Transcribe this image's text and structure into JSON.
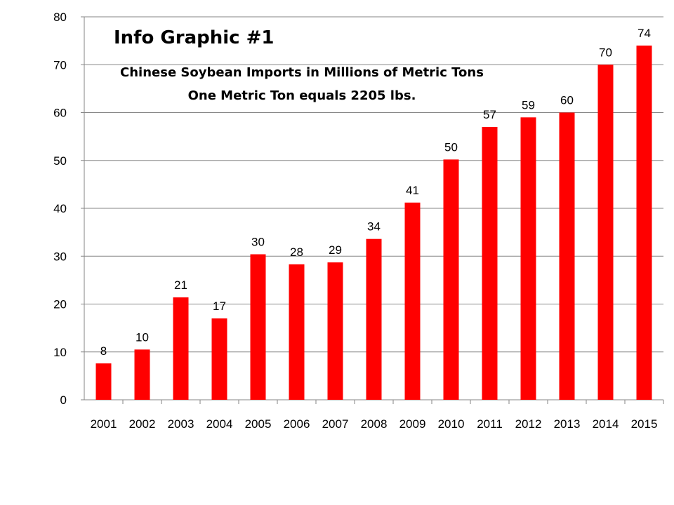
{
  "chart_data": {
    "type": "bar",
    "title": "Info Graphic #1",
    "subtitle_lines": [
      "Chinese Soybean Imports in Millions of Metric Tons",
      "One Metric Ton equals 2205 lbs."
    ],
    "xlabel": "",
    "ylabel": "",
    "categories": [
      "2001",
      "2002",
      "2003",
      "2004",
      "2005",
      "2006",
      "2007",
      "2008",
      "2009",
      "2010",
      "2011",
      "2012",
      "2013",
      "2014",
      "2015"
    ],
    "values": [
      7.6,
      10.5,
      21.4,
      17.0,
      30.4,
      28.3,
      28.7,
      33.6,
      41.2,
      50.2,
      57.0,
      59.0,
      60.0,
      70.0,
      74.0
    ],
    "data_labels": [
      "8",
      "10",
      "21",
      "17",
      "30",
      "28",
      "29",
      "34",
      "41",
      "50",
      "57",
      "59",
      "60",
      "70",
      "74"
    ],
    "ylim": [
      0,
      80
    ],
    "yticks": [
      "0",
      "10",
      "20",
      "30",
      "40",
      "50",
      "60",
      "70",
      "80"
    ],
    "grid": true,
    "legend": "none",
    "bar_color": "#ff0000",
    "grid_color": "#868686"
  }
}
